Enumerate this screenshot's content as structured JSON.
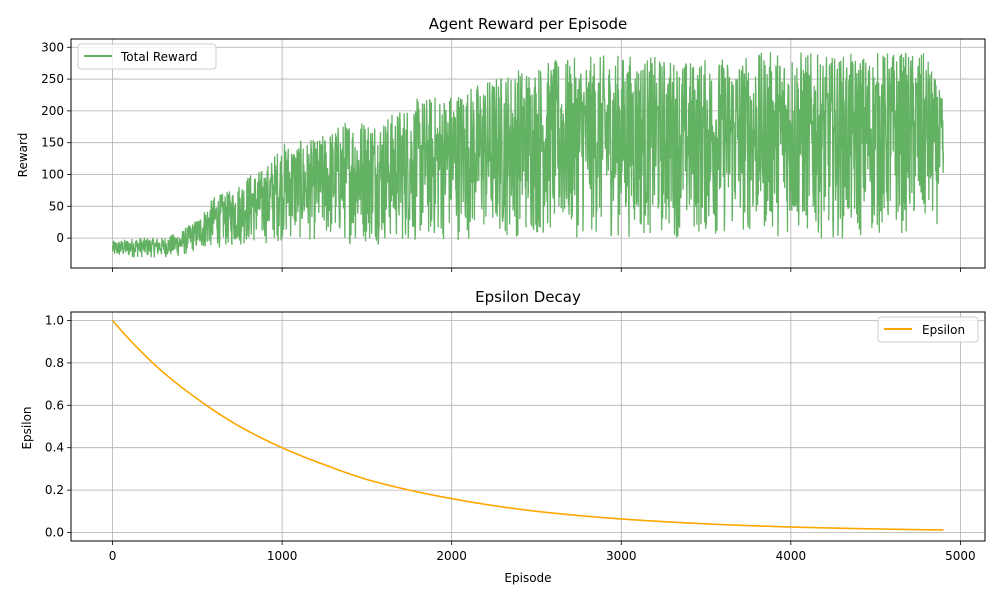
{
  "chart_data": [
    {
      "type": "line",
      "title": "Agent Reward per Episode",
      "xlabel": "",
      "ylabel": "Reward",
      "xlim": [
        -245,
        5145
      ],
      "ylim": [
        -47,
        313
      ],
      "xticks": [
        0,
        1000,
        2000,
        3000,
        4000,
        5000
      ],
      "xtick_labels_shown": false,
      "yticks": [
        0,
        50,
        100,
        150,
        200,
        250,
        300
      ],
      "ytick_labels": [
        "0",
        "50",
        "100",
        "150",
        "200",
        "250",
        "300"
      ],
      "grid": true,
      "legend_position": "upper-left",
      "series": [
        {
          "name": "Total Reward",
          "color": "#63b163",
          "description": "noisy per-episode reward; low envelope and high envelope (episode: [low, high])",
          "x": [
            0,
            150,
            300,
            400,
            500,
            600,
            700,
            800,
            900,
            1000,
            1200,
            1400,
            1600,
            1800,
            2000,
            2200,
            2400,
            2600,
            2800,
            3000,
            3200,
            3400,
            3600,
            3800,
            4000,
            4200,
            4400,
            4600,
            4800,
            4900
          ],
          "low": [
            -30,
            -30,
            -30,
            -30,
            -20,
            -15,
            -15,
            -10,
            -10,
            -5,
            -5,
            -10,
            -10,
            -10,
            -5,
            0,
            0,
            0,
            0,
            0,
            0,
            0,
            0,
            5,
            0,
            0,
            -5,
            5,
            5,
            30
          ],
          "high": [
            -5,
            0,
            0,
            10,
            30,
            65,
            75,
            100,
            110,
            150,
            155,
            190,
            190,
            220,
            230,
            250,
            270,
            280,
            285,
            290,
            285,
            280,
            285,
            290,
            300,
            285,
            290,
            295,
            290,
            215
          ]
        }
      ]
    },
    {
      "type": "line",
      "title": "Epsilon Decay",
      "xlabel": "Episode",
      "ylabel": "Epsilon",
      "xlim": [
        -245,
        5145
      ],
      "ylim": [
        -0.04,
        1.04
      ],
      "xticks": [
        0,
        1000,
        2000,
        3000,
        4000,
        5000
      ],
      "xtick_labels": [
        "0",
        "1000",
        "2000",
        "3000",
        "4000",
        "5000"
      ],
      "yticks": [
        0.0,
        0.2,
        0.4,
        0.6,
        0.8,
        1.0
      ],
      "ytick_labels": [
        "0.0",
        "0.2",
        "0.4",
        "0.6",
        "0.8",
        "1.0"
      ],
      "grid": true,
      "legend_position": "upper-right",
      "series": [
        {
          "name": "Epsilon",
          "color": "#ffa500",
          "x": [
            0,
            250,
            500,
            750,
            1000,
            1250,
            1500,
            1750,
            2000,
            2500,
            3000,
            3500,
            4000,
            4500,
            4900
          ],
          "y": [
            1.0,
            0.79,
            0.63,
            0.5,
            0.4,
            0.32,
            0.25,
            0.2,
            0.16,
            0.1,
            0.064,
            0.041,
            0.026,
            0.017,
            0.012
          ]
        }
      ]
    }
  ]
}
